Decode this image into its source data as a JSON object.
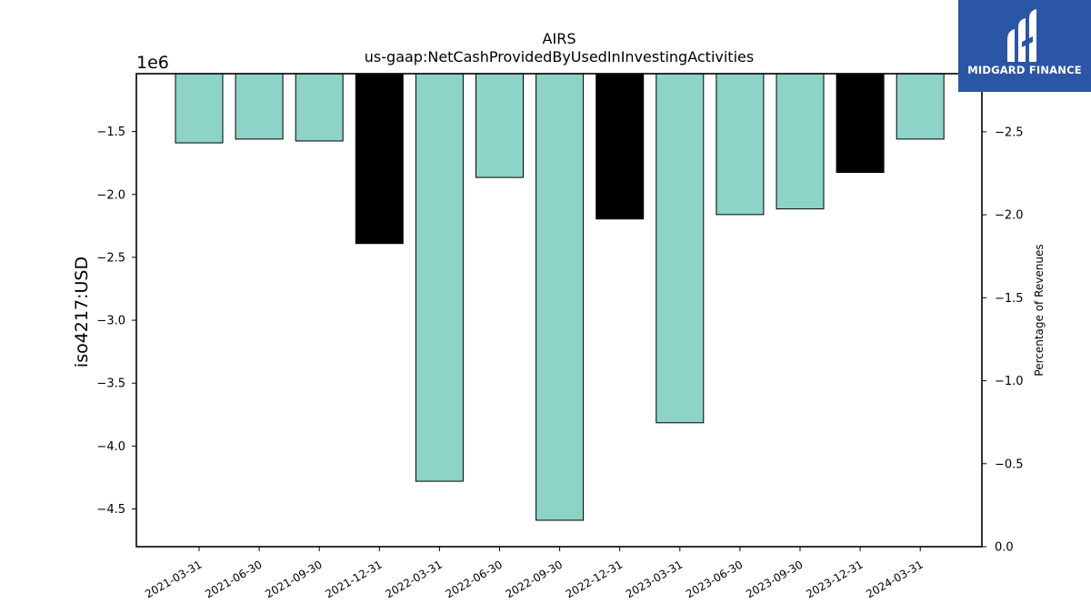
{
  "chart_data": {
    "type": "bar",
    "title": "AIRS",
    "subtitle": "us-gaap:NetCashProvidedByUsedInInvestingActivities",
    "ylabel": "iso4217:USD",
    "y_offset_label": "1e6",
    "y2label": "Percentage of Revenues",
    "categories": [
      "2021-03-31",
      "2021-06-30",
      "2021-09-30",
      "2021-12-31",
      "2022-03-31",
      "2022-06-30",
      "2022-09-30",
      "2022-12-31",
      "2023-03-31",
      "2023-06-30",
      "2023-09-30",
      "2023-12-31",
      "2024-03-31"
    ],
    "values": [
      -1590000,
      -1560000,
      -1575000,
      -2390000,
      -4280000,
      -1865000,
      -4590000,
      -2195000,
      -3815000,
      -2160000,
      -2115000,
      -1825000,
      -1560000
    ],
    "highlight": [
      false,
      false,
      false,
      true,
      false,
      false,
      false,
      true,
      false,
      false,
      false,
      true,
      false
    ],
    "ylim": [
      -4800000,
      -1040000
    ],
    "yticks": [
      -1500000,
      -2000000,
      -2500000,
      -3000000,
      -3500000,
      -4000000,
      -4500000
    ],
    "ytick_labels": [
      "−1.5",
      "−2.0",
      "−2.5",
      "−3.0",
      "−3.5",
      "−4.0",
      "−4.5"
    ],
    "y2lim": [
      0,
      -2.85
    ],
    "y2ticks": [
      -2.5,
      -2.0,
      -1.5,
      -1.0,
      -0.5,
      0.0
    ],
    "y2tick_labels": [
      "−2.5",
      "−2.0",
      "−1.5",
      "−1.0",
      "−0.5",
      "0.0"
    ],
    "colors": {
      "bar": "#8dd3c7",
      "highlight": "#000000",
      "edge": "#000000"
    },
    "grid": false
  },
  "logo": {
    "text": "MIDGARD FINANCE",
    "color": "#2b56a6"
  }
}
